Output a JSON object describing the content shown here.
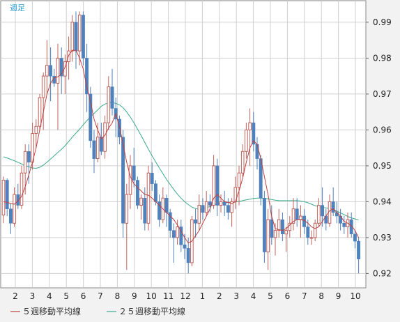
{
  "chart_data": {
    "type": "candlestick",
    "period_label": "週足",
    "ylim": [
      0.916,
      0.996
    ],
    "y_ticks": [
      0.92,
      0.93,
      0.94,
      0.95,
      0.96,
      0.97,
      0.98,
      0.99
    ],
    "y_tick_labels": [
      "0.92",
      "0.93",
      "0.94",
      "0.95",
      "0.96",
      "0.97",
      "0.98",
      "0.99"
    ],
    "x_tick_labels": [
      "2",
      "3",
      "4",
      "5",
      "6",
      "7",
      "8",
      "9",
      "10",
      "11",
      "12",
      "1",
      "2",
      "3",
      "4",
      "5",
      "6",
      "7",
      "8",
      "9",
      "10"
    ],
    "up_color": "#c0605a",
    "down_color": "#4f81bd",
    "ma5_color": "#c04040",
    "ma25_color": "#3aaa8a",
    "legend": [
      {
        "label": "５週移動平均線",
        "color": "#c04040"
      },
      {
        "label": "２５週移動平均線",
        "color": "#3aaa8a"
      }
    ],
    "candles": [
      [
        0.9363,
        0.947,
        0.934,
        0.946
      ],
      [
        0.946,
        0.9465,
        0.936,
        0.938
      ],
      [
        0.938,
        0.9395,
        0.931,
        0.934
      ],
      [
        0.934,
        0.944,
        0.933,
        0.942
      ],
      [
        0.942,
        0.945,
        0.938,
        0.939
      ],
      [
        0.939,
        0.95,
        0.938,
        0.948
      ],
      [
        0.948,
        0.956,
        0.942,
        0.954
      ],
      [
        0.954,
        0.956,
        0.945,
        0.951
      ],
      [
        0.951,
        0.962,
        0.949,
        0.959
      ],
      [
        0.959,
        0.963,
        0.955,
        0.961
      ],
      [
        0.961,
        0.97,
        0.96,
        0.969
      ],
      [
        0.969,
        0.976,
        0.96,
        0.975
      ],
      [
        0.975,
        0.985,
        0.97,
        0.978
      ],
      [
        0.978,
        0.983,
        0.968,
        0.975
      ],
      [
        0.975,
        0.977,
        0.972,
        0.973
      ],
      [
        0.973,
        0.984,
        0.96,
        0.98
      ],
      [
        0.98,
        0.983,
        0.97,
        0.975
      ],
      [
        0.975,
        0.981,
        0.97,
        0.979
      ],
      [
        0.979,
        0.986,
        0.974,
        0.982
      ],
      [
        0.982,
        0.992,
        0.979,
        0.99
      ],
      [
        0.99,
        0.993,
        0.977,
        0.982
      ],
      [
        0.982,
        0.993,
        0.978,
        0.992
      ],
      [
        0.992,
        0.993,
        0.978,
        0.98
      ],
      [
        0.98,
        0.984,
        0.965,
        0.97
      ],
      [
        0.97,
        0.972,
        0.955,
        0.957
      ],
      [
        0.957,
        0.96,
        0.948,
        0.952
      ],
      [
        0.952,
        0.962,
        0.951,
        0.958
      ],
      [
        0.958,
        0.962,
        0.953,
        0.954
      ],
      [
        0.954,
        0.964,
        0.952,
        0.962
      ],
      [
        0.962,
        0.975,
        0.96,
        0.972
      ],
      [
        0.972,
        0.977,
        0.964,
        0.966
      ],
      [
        0.966,
        0.969,
        0.958,
        0.963
      ],
      [
        0.963,
        0.964,
        0.956,
        0.958
      ],
      [
        0.958,
        0.96,
        0.93,
        0.934
      ],
      [
        0.934,
        0.945,
        0.921,
        0.942
      ],
      [
        0.942,
        0.953,
        0.938,
        0.95
      ],
      [
        0.95,
        0.955,
        0.944,
        0.946
      ],
      [
        0.946,
        0.947,
        0.938,
        0.939
      ],
      [
        0.939,
        0.942,
        0.935,
        0.941
      ],
      [
        0.941,
        0.944,
        0.932,
        0.934
      ],
      [
        0.934,
        0.95,
        0.932,
        0.948
      ],
      [
        0.948,
        0.951,
        0.943,
        0.945
      ],
      [
        0.945,
        0.946,
        0.939,
        0.94
      ],
      [
        0.94,
        0.942,
        0.933,
        0.935
      ],
      [
        0.935,
        0.944,
        0.934,
        0.941
      ],
      [
        0.941,
        0.942,
        0.933,
        0.937
      ],
      [
        0.937,
        0.938,
        0.93,
        0.932
      ],
      [
        0.932,
        0.934,
        0.923,
        0.93
      ],
      [
        0.93,
        0.935,
        0.928,
        0.933
      ],
      [
        0.933,
        0.935,
        0.926,
        0.928
      ],
      [
        0.928,
        0.931,
        0.924,
        0.927
      ],
      [
        0.927,
        0.93,
        0.92,
        0.923
      ],
      [
        0.923,
        0.936,
        0.922,
        0.935
      ],
      [
        0.935,
        0.938,
        0.93,
        0.934
      ],
      [
        0.934,
        0.942,
        0.932,
        0.939
      ],
      [
        0.939,
        0.941,
        0.935,
        0.937
      ],
      [
        0.937,
        0.943,
        0.936,
        0.94
      ],
      [
        0.94,
        0.942,
        0.937,
        0.939
      ],
      [
        0.939,
        0.953,
        0.938,
        0.95
      ],
      [
        0.95,
        0.952,
        0.936,
        0.939
      ],
      [
        0.939,
        0.942,
        0.937,
        0.94
      ],
      [
        0.94,
        0.943,
        0.936,
        0.939
      ],
      [
        0.939,
        0.941,
        0.935,
        0.937
      ],
      [
        0.937,
        0.941,
        0.933,
        0.94
      ],
      [
        0.94,
        0.947,
        0.938,
        0.944
      ],
      [
        0.944,
        0.95,
        0.939,
        0.948
      ],
      [
        0.948,
        0.956,
        0.947,
        0.954
      ],
      [
        0.954,
        0.962,
        0.952,
        0.96
      ],
      [
        0.96,
        0.966,
        0.95,
        0.962
      ],
      [
        0.962,
        0.965,
        0.954,
        0.956
      ],
      [
        0.956,
        0.958,
        0.949,
        0.952
      ],
      [
        0.952,
        0.953,
        0.939,
        0.941
      ],
      [
        0.941,
        0.943,
        0.923,
        0.926
      ],
      [
        0.926,
        0.938,
        0.921,
        0.935
      ],
      [
        0.935,
        0.939,
        0.928,
        0.93
      ],
      [
        0.93,
        0.934,
        0.925,
        0.932
      ],
      [
        0.932,
        0.938,
        0.93,
        0.935
      ],
      [
        0.935,
        0.937,
        0.929,
        0.931
      ],
      [
        0.931,
        0.933,
        0.926,
        0.932
      ],
      [
        0.932,
        0.936,
        0.93,
        0.934
      ],
      [
        0.934,
        0.941,
        0.932,
        0.938
      ],
      [
        0.938,
        0.941,
        0.933,
        0.935
      ],
      [
        0.935,
        0.939,
        0.93,
        0.936
      ],
      [
        0.936,
        0.938,
        0.931,
        0.933
      ],
      [
        0.933,
        0.935,
        0.928,
        0.93
      ],
      [
        0.93,
        0.932,
        0.928,
        0.93
      ],
      [
        0.93,
        0.935,
        0.929,
        0.934
      ],
      [
        0.934,
        0.941,
        0.933,
        0.939
      ],
      [
        0.939,
        0.944,
        0.933,
        0.936
      ],
      [
        0.936,
        0.938,
        0.932,
        0.934
      ],
      [
        0.934,
        0.942,
        0.933,
        0.94
      ],
      [
        0.94,
        0.944,
        0.936,
        0.937
      ],
      [
        0.937,
        0.94,
        0.934,
        0.936
      ],
      [
        0.936,
        0.938,
        0.932,
        0.934
      ],
      [
        0.934,
        0.936,
        0.931,
        0.933
      ],
      [
        0.933,
        0.937,
        0.93,
        0.935
      ],
      [
        0.935,
        0.937,
        0.93,
        0.931
      ],
      [
        0.931,
        0.932,
        0.927,
        0.929
      ],
      [
        0.929,
        0.93,
        0.92,
        0.924
      ]
    ],
    "ma5": [
      0.94,
      0.9398,
      0.9395,
      0.9393,
      0.9402,
      0.9415,
      0.9442,
      0.9475,
      0.951,
      0.955,
      0.96,
      0.965,
      0.97,
      0.973,
      0.9745,
      0.9748,
      0.9756,
      0.9775,
      0.9808,
      0.9822,
      0.9822,
      0.98,
      0.977,
      0.972,
      0.968,
      0.963,
      0.96,
      0.9575,
      0.9585,
      0.9605,
      0.962,
      0.9645,
      0.961,
      0.956,
      0.951,
      0.947,
      0.945,
      0.944,
      0.943,
      0.942,
      0.9418,
      0.941,
      0.94,
      0.939,
      0.938,
      0.937,
      0.936,
      0.935,
      0.9335,
      0.9318,
      0.93,
      0.9285,
      0.929,
      0.9305,
      0.932,
      0.934,
      0.936,
      0.938,
      0.941,
      0.942,
      0.941,
      0.94,
      0.9398,
      0.9395,
      0.94,
      0.943,
      0.9465,
      0.951,
      0.955,
      0.957,
      0.956,
      0.952,
      0.947,
      0.942,
      0.936,
      0.9325,
      0.9322,
      0.932,
      0.9325,
      0.9335,
      0.9345,
      0.935,
      0.935,
      0.9348,
      0.934,
      0.933,
      0.9325,
      0.933,
      0.9345,
      0.936,
      0.9375,
      0.938,
      0.937,
      0.936,
      0.9345,
      0.934,
      0.9333,
      0.932,
      0.93
    ],
    "ma25": [
      0.9525,
      0.9522,
      0.9518,
      0.9514,
      0.951,
      0.9505,
      0.95,
      0.9497,
      0.9494,
      0.9493,
      0.9496,
      0.9502,
      0.951,
      0.9519,
      0.9528,
      0.9537,
      0.9546,
      0.9556,
      0.9568,
      0.958,
      0.9591,
      0.9602,
      0.9614,
      0.9626,
      0.9636,
      0.9646,
      0.9656,
      0.9666,
      0.9672,
      0.9675,
      0.9676,
      0.9674,
      0.967,
      0.9662,
      0.965,
      0.9636,
      0.962,
      0.9602,
      0.9584,
      0.9565,
      0.9546,
      0.9528,
      0.9511,
      0.9494,
      0.9478,
      0.9462,
      0.9448,
      0.9434,
      0.9421,
      0.941,
      0.94,
      0.9392,
      0.9385,
      0.9381,
      0.9379,
      0.938,
      0.9383,
      0.9387,
      0.9391,
      0.9394,
      0.9396,
      0.9397,
      0.9398,
      0.9398,
      0.9399,
      0.9401,
      0.9403,
      0.9405,
      0.9407,
      0.9409,
      0.941,
      0.941,
      0.9409,
      0.9408,
      0.9406,
      0.9404,
      0.9403,
      0.9403,
      0.9403,
      0.9403,
      0.9403,
      0.9403,
      0.9402,
      0.94,
      0.9397,
      0.9393,
      0.9389,
      0.9386,
      0.9384,
      0.9383,
      0.9381,
      0.9378,
      0.9374,
      0.9369,
      0.9364,
      0.9359,
      0.9355,
      0.9352,
      0.9349
    ]
  }
}
